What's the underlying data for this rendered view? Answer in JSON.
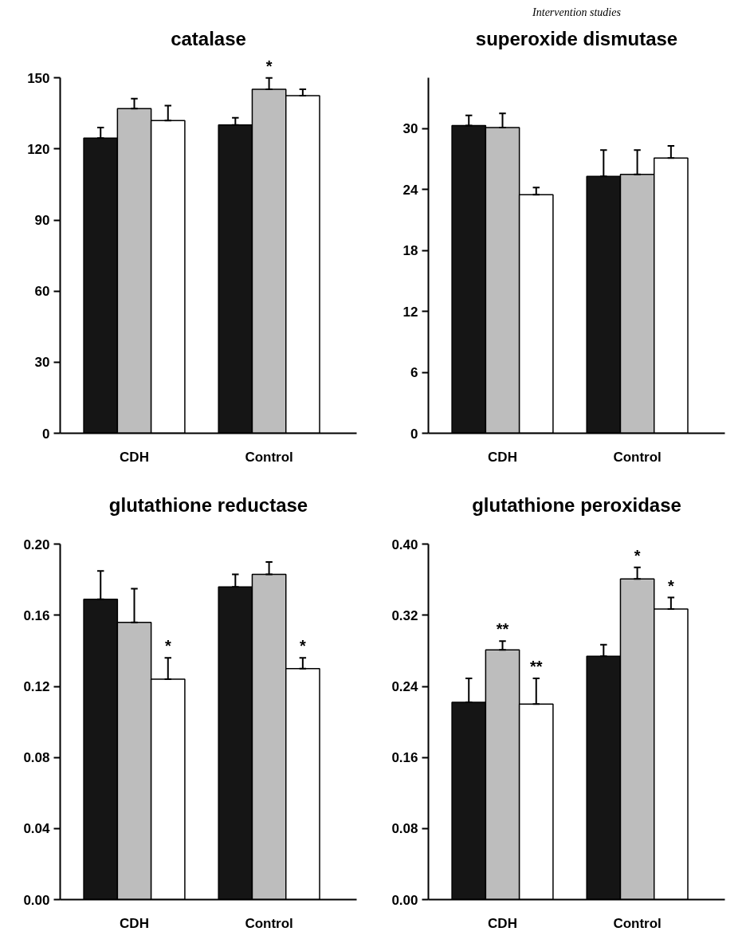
{
  "chart_data": [
    {
      "type": "bar",
      "title": "catalase",
      "categories": [
        "CDH",
        "Control"
      ],
      "ylim": [
        0,
        150
      ],
      "yticks": [
        0,
        30,
        60,
        90,
        120,
        150
      ],
      "grid": false,
      "series": [
        {
          "color": "#151515",
          "values": [
            124.6,
            130.1
          ],
          "errors": [
            [
              124.6,
              129.0
            ],
            [
              130.1,
              133.2
            ]
          ]
        },
        {
          "color": "#bdbdbd",
          "values": [
            137.0,
            145.2
          ],
          "errors": [
            [
              137.0,
              141.2
            ],
            [
              145.2,
              150.0
            ]
          ]
        },
        {
          "color": "#ffffff",
          "values": [
            132.0,
            142.5
          ],
          "errors": [
            [
              132.0,
              138.3
            ],
            [
              142.5,
              145.2
            ]
          ]
        }
      ],
      "annotations": [
        {
          "text": "*",
          "x": "Control",
          "y": 145.2
        }
      ]
    },
    {
      "type": "bar",
      "title": "superoxide dismutase",
      "categories": [
        "CDH",
        "Control"
      ],
      "ylim": [
        0,
        35
      ],
      "yticks": [
        0,
        6,
        12,
        18,
        24,
        30
      ],
      "grid": false,
      "series": [
        {
          "color": "#151515",
          "values": [
            30.3,
            25.3
          ],
          "errors": [
            [
              30.3,
              31.3
            ],
            [
              25.3,
              27.9
            ]
          ]
        },
        {
          "color": "#bdbdbd",
          "values": [
            30.1,
            25.5
          ],
          "errors": [
            [
              30.1,
              31.5
            ],
            [
              25.5,
              27.9
            ]
          ]
        },
        {
          "color": "#ffffff",
          "values": [
            23.5,
            27.1
          ],
          "errors": [
            [
              23.5,
              24.2
            ],
            [
              27.1,
              28.3
            ]
          ]
        }
      ],
      "annotations": [
        "Intervention studies"
      ]
    },
    {
      "type": "bar",
      "title": "glutathione reductase",
      "categories": [
        "CDH",
        "Control"
      ],
      "ylim": [
        0,
        0.2
      ],
      "yticks": [
        {
          "value": 0,
          "label": "0.00"
        },
        0.04,
        0.08,
        0.12,
        0.16,
        {
          "value": 0.2,
          "label": "0.20"
        }
      ],
      "grid": false,
      "series": [
        {
          "color": "#151515",
          "values": [
            0.169,
            0.176
          ],
          "errors": [
            [
              0.169,
              0.185
            ],
            [
              0.176,
              0.183
            ]
          ]
        },
        {
          "color": "#bdbdbd",
          "values": [
            0.156,
            0.183
          ],
          "errors": [
            [
              0.156,
              0.175
            ],
            [
              0.183,
              0.19
            ]
          ]
        },
        {
          "color": "#ffffff",
          "values": [
            0.124,
            0.13
          ],
          "errors": [
            [
              0.124,
              0.136
            ],
            [
              0.13,
              0.136
            ]
          ]
        }
      ],
      "annotations": [
        {
          "text": "*",
          "y": 0.124
        },
        {
          "text": "*",
          "y": 0.13
        }
      ]
    },
    {
      "type": "bar",
      "title": "glutathione peroxidase",
      "categories": [
        "CDH",
        "Control"
      ],
      "ylim": [
        0,
        0.4
      ],
      "yticks": [
        {
          "value": 0,
          "label": "0.00"
        },
        0.08,
        0.16,
        0.24,
        0.32,
        {
          "value": 0.4,
          "label": "0.40"
        }
      ],
      "grid": false,
      "series": [
        {
          "color": "#151515",
          "values": [
            0.222,
            0.274
          ],
          "errors": [
            [
              0.222,
              0.249
            ],
            [
              0.274,
              0.287
            ]
          ]
        },
        {
          "color": "#bdbdbd",
          "values": [
            0.281,
            0.361
          ],
          "errors": [
            [
              0.281,
              0.291
            ],
            [
              0.361,
              0.374
            ]
          ]
        },
        {
          "color": "#ffffff",
          "values": [
            0.22,
            0.327
          ],
          "errors": [
            [
              0.22,
              0.249
            ],
            [
              0.327,
              0.34
            ]
          ]
        }
      ],
      "annotations": [
        {
          "text": "**",
          "x": "CDH",
          "y": 0.281
        },
        {
          "text": "**",
          "y": 0.22
        },
        {
          "text": "*",
          "x": "Control",
          "y": 0.361
        },
        {
          "text": "*",
          "y": 0.327
        }
      ]
    }
  ]
}
